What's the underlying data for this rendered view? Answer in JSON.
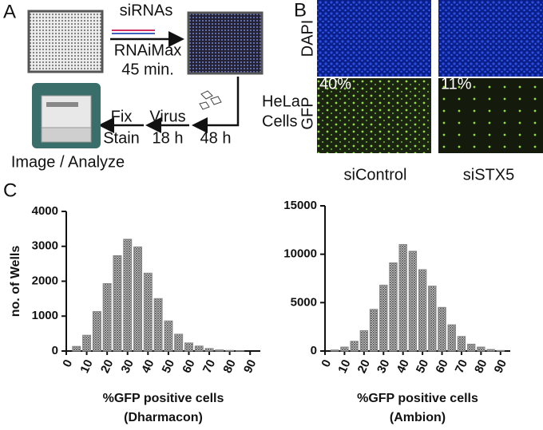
{
  "panels": {
    "a": {
      "label": "A",
      "sirnas": "siRNAs",
      "reagent": "RNAiMax",
      "incubation": "45 min.",
      "cells": [
        "HeLa",
        "Cells"
      ],
      "wait": "48 h",
      "virus": [
        "Virus",
        "18 h"
      ],
      "fix": [
        "Fix",
        "Stain"
      ],
      "imaging": "Image / Analyze"
    },
    "b": {
      "label": "B",
      "rows": [
        "DAPI",
        "GFP"
      ],
      "percents": [
        "40%",
        "11%"
      ],
      "columns": [
        "siControl",
        "siSTX5"
      ]
    },
    "c": {
      "label": "C"
    }
  },
  "chart_data": [
    {
      "type": "histogram",
      "ylabel": "no. of Wells",
      "xlabel": [
        "%GFP positive cells",
        "(Dharmacon)"
      ],
      "bins": [
        2.5,
        7.5,
        12.5,
        17.5,
        22.5,
        27.5,
        32.5,
        37.5,
        42.5,
        47.5,
        52.5,
        57.5,
        62.5,
        67.5,
        72.5,
        77.5,
        82.5,
        87.5,
        92.5
      ],
      "counts": [
        130,
        450,
        1130,
        1930,
        2730,
        3200,
        2980,
        2230,
        1500,
        860,
        480,
        230,
        140,
        70,
        30,
        15,
        5,
        0
      ],
      "xlim": [
        0,
        95
      ],
      "xticks": [
        0,
        10,
        20,
        30,
        40,
        50,
        60,
        70,
        80,
        90
      ],
      "ylim": [
        0,
        4000
      ],
      "yticks": [
        0,
        1000,
        2000,
        3000,
        4000
      ],
      "color": "#888888"
    },
    {
      "type": "histogram",
      "xlabel": [
        "%GFP positive cells",
        "(Ambion)"
      ],
      "bins": [
        2.5,
        7.5,
        12.5,
        17.5,
        22.5,
        27.5,
        32.5,
        37.5,
        42.5,
        47.5,
        52.5,
        57.5,
        62.5,
        67.5,
        72.5,
        77.5,
        82.5,
        87.5,
        92.5
      ],
      "counts": [
        100,
        400,
        1000,
        2100,
        4300,
        6800,
        9100,
        11000,
        10300,
        8400,
        6700,
        4500,
        2700,
        1500,
        700,
        400,
        150,
        50
      ],
      "xlim": [
        0,
        95
      ],
      "xticks": [
        0,
        10,
        20,
        30,
        40,
        50,
        60,
        70,
        80,
        90
      ],
      "ylim": [
        0,
        15000
      ],
      "yticks": [
        0,
        5000,
        10000,
        15000
      ],
      "color": "#888888"
    }
  ]
}
